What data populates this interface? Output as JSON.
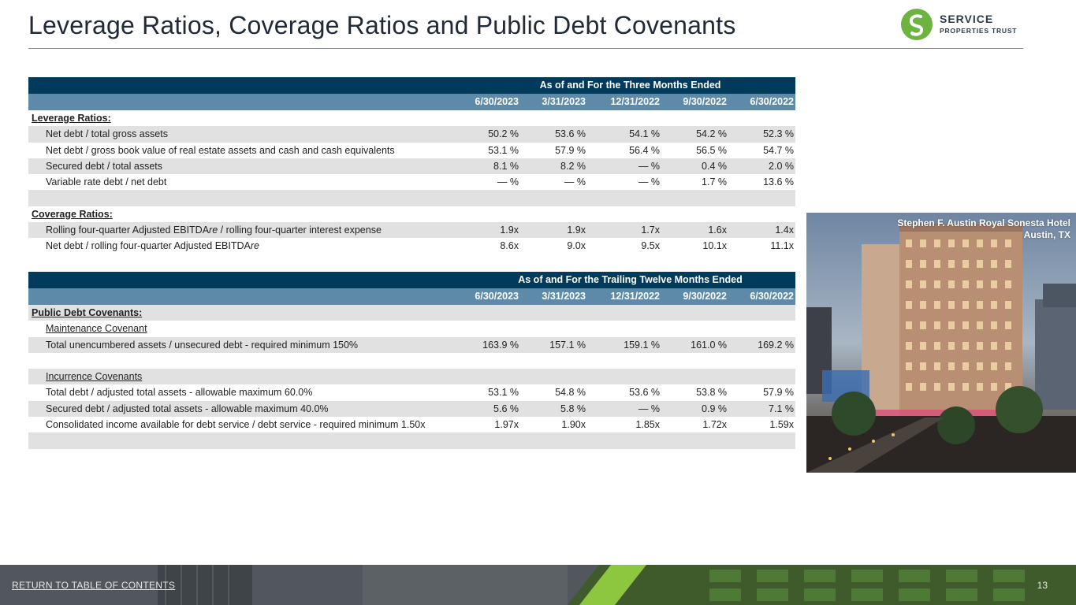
{
  "title": "Leverage Ratios, Coverage Ratios and Public Debt Covenants",
  "logo": {
    "line1": "SERVICE",
    "line2": "PROPERTIES TRUST",
    "brand_color": "#6cb33f"
  },
  "table1": {
    "header": "As of and For the Three Months Ended",
    "columns": [
      "6/30/2023",
      "3/31/2023",
      "12/31/2022",
      "9/30/2022",
      "6/30/2022"
    ],
    "leverage_title": "Leverage Ratios:",
    "leverage_rows": [
      {
        "label": "Net debt / total gross assets",
        "values": [
          "50.2 %",
          "53.6 %",
          "54.1 %",
          "54.2 %",
          "52.3 %"
        ]
      },
      {
        "label": "Net debt / gross book value of real estate assets and cash and cash equivalents",
        "values": [
          "53.1 %",
          "57.9 %",
          "56.4 %",
          "56.5 %",
          "54.7 %"
        ]
      },
      {
        "label": "Secured debt / total assets",
        "values": [
          "8.1 %",
          "8.2 %",
          "— %",
          "0.4 %",
          "2.0 %"
        ]
      },
      {
        "label": "Variable rate debt / net debt",
        "values": [
          "— %",
          "— %",
          "— %",
          "1.7 %",
          "13.6 %"
        ]
      }
    ],
    "coverage_title": "Coverage Ratios:",
    "coverage_rows": [
      {
        "label_pre": "Rolling four-quarter Adjusted EBITDA",
        "label_it": "re",
        "label_post": " / rolling four-quarter interest expense",
        "values": [
          "1.9x",
          "1.9x",
          "1.7x",
          "1.6x",
          "1.4x"
        ]
      },
      {
        "label_pre": "Net debt / rolling four-quarter Adjusted EBITDA",
        "label_it": "re",
        "label_post": "",
        "values": [
          "8.6x",
          "9.0x",
          "9.5x",
          "10.1x",
          "11.1x"
        ]
      }
    ]
  },
  "table2": {
    "header": "As of and For the Trailing Twelve Months Ended",
    "columns": [
      "6/30/2023",
      "3/31/2023",
      "12/31/2022",
      "9/30/2022",
      "6/30/2022"
    ],
    "section_title": "Public Debt Covenants:",
    "maintenance_title": "Maintenance Covenant",
    "maintenance_rows": [
      {
        "label": "Total unencumbered assets / unsecured debt - required minimum 150%",
        "values": [
          "163.9 %",
          "157.1 %",
          "159.1 %",
          "161.0 %",
          "169.2 %"
        ]
      }
    ],
    "incurrence_title": "Incurrence Covenants",
    "incurrence_rows": [
      {
        "label": "Total debt / adjusted total assets - allowable maximum 60.0%",
        "values": [
          "53.1 %",
          "54.8 %",
          "53.6 %",
          "53.8 %",
          "57.9 %"
        ]
      },
      {
        "label": "Secured debt / adjusted total assets - allowable maximum 40.0%",
        "values": [
          "5.6 %",
          "5.8 %",
          "— %",
          "0.9 %",
          "7.1 %"
        ]
      },
      {
        "label": "Consolidated income available for debt service / debt service - required minimum 1.50x",
        "values": [
          "1.97x",
          "1.90x",
          "1.85x",
          "1.72x",
          "1.59x"
        ]
      }
    ]
  },
  "photo": {
    "caption_line1": "Stephen F. Austin Royal Sonesta Hotel",
    "caption_line2": "Austin, TX"
  },
  "footer": {
    "link": "RETURN TO TABLE OF CONTENTS",
    "page_number": "13"
  },
  "colors": {
    "header_dark": "#003b5c",
    "header_light": "#5d8aa8",
    "row_shade": "#e1e1e1"
  }
}
